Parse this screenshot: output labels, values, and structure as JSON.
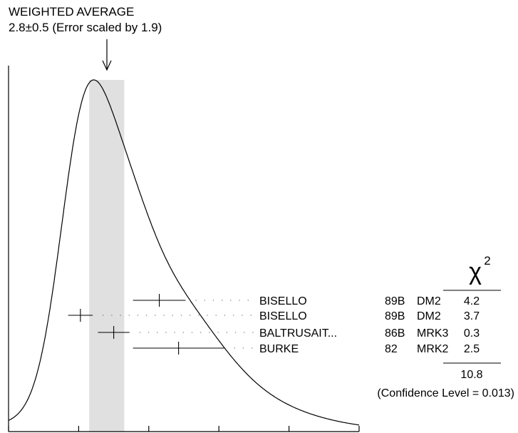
{
  "chart_data": {
    "type": "ideogram",
    "header": {
      "line1": "WEIGHTED AVERAGE",
      "line2": "2.8±0.5 (Error scaled by 1.9)"
    },
    "weighted_average": {
      "value": 2.8,
      "error": 0.5,
      "scale_factor": 1.9
    },
    "x": {
      "min": 0,
      "max": 10,
      "ticks": [
        0,
        2,
        4,
        6,
        8,
        10
      ]
    },
    "chi2_header": "χ",
    "chi2_exponent": "2",
    "measurements": [
      {
        "author": "BISELLO",
        "year": "89B",
        "experiment": "DM2",
        "value": 4.3,
        "error": 0.75,
        "chi2": "4.2"
      },
      {
        "author": "BISELLO",
        "year": "89B",
        "experiment": "DM2",
        "value": 2.05,
        "error": 0.35,
        "chi2": "3.7"
      },
      {
        "author": "BALTRUSAIT...",
        "year": "86B",
        "experiment": "MRK3",
        "value": 3.0,
        "error": 0.45,
        "chi2": "0.3"
      },
      {
        "author": "BURKE",
        "year": "82",
        "experiment": "MRK2",
        "value": 4.85,
        "error": 1.3,
        "chi2": "2.5"
      }
    ],
    "chi2_total": "10.8",
    "confidence_level": "(Confidence Level = 0.013)"
  }
}
